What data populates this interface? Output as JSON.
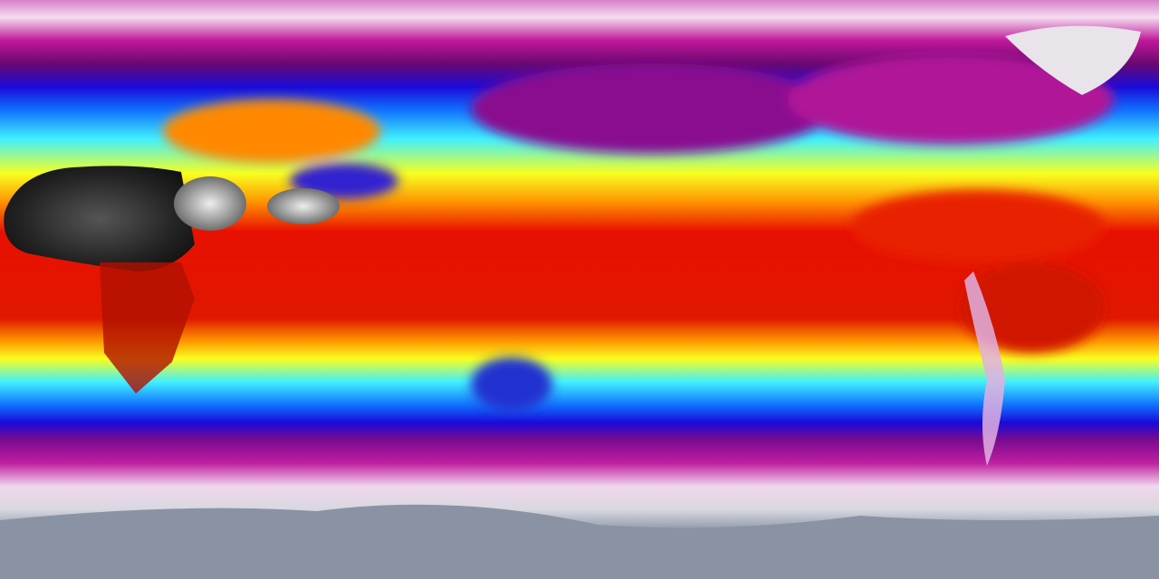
{
  "map": {
    "projection": "equirectangular",
    "colormap": [
      "#8a93a3",
      "#f2e6ef",
      "#c0189a",
      "#7a0a80",
      "#1a0ad8",
      "#0a6cff",
      "#3ef0ff",
      "#f8ff20",
      "#ff9a00",
      "#e81000",
      "#222222",
      "#e0e0e0"
    ]
  }
}
